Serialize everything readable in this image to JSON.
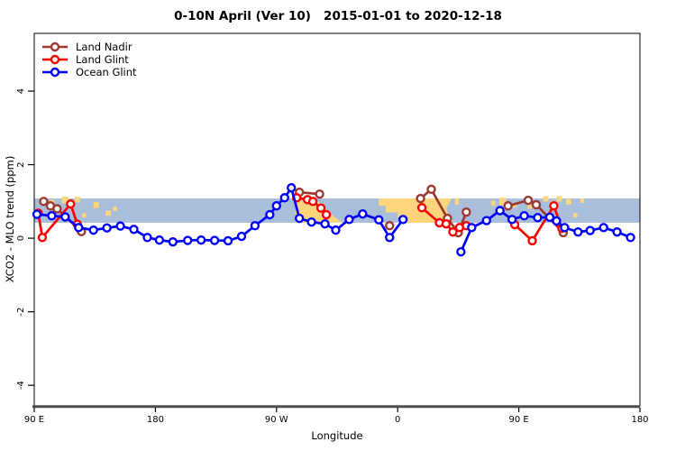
{
  "title": "0-10N April (Ver 10)   2015-01-01 to 2020-12-18",
  "legend": {
    "items": [
      {
        "label": "Land Nadir",
        "color": "#9c3a31"
      },
      {
        "label": "Land Glint",
        "color": "#ff0000"
      },
      {
        "label": "Ocean Glint",
        "color": "#0000ff"
      }
    ]
  },
  "chart_data": {
    "type": "line",
    "title": "0-10N April (Ver 10)   2015-01-01 to 2020-12-18",
    "xlabel": "Longitude",
    "ylabel": "XCO2 - MLO trend (ppm)",
    "xlim": [
      90,
      540
    ],
    "ylim": [
      -4.56,
      5.57
    ],
    "grid": false,
    "legend_position": "top-left",
    "x_ticks": [
      {
        "pos": 90,
        "label": "90 E"
      },
      {
        "pos": 180,
        "label": "180"
      },
      {
        "pos": 270,
        "label": "90 W"
      },
      {
        "pos": 360,
        "label": "0"
      },
      {
        "pos": 450,
        "label": "90 E"
      },
      {
        "pos": 540,
        "label": "180"
      }
    ],
    "y_ticks": [
      {
        "pos": -4,
        "label": "-4"
      },
      {
        "pos": -2,
        "label": "-2"
      },
      {
        "pos": 0,
        "label": "0"
      },
      {
        "pos": 2,
        "label": "2"
      },
      {
        "pos": 4,
        "label": "4"
      }
    ],
    "band": {
      "ymin": 0.42,
      "ymax": 1.08,
      "color": "#a9bedb",
      "description": "0-10N latitude strip map: blue = ocean"
    },
    "land_patches": {
      "color": "#fcd57c",
      "polygons": [
        {
          "name": "south-america",
          "points": [
            [
              284,
              1.02
            ],
            [
              300,
              1.02
            ],
            [
              306,
              0.82
            ],
            [
              313,
              0.58
            ],
            [
              319,
              0.42
            ],
            [
              284,
              0.42
            ]
          ]
        },
        {
          "name": "africa",
          "points": [
            [
              346,
              1.08
            ],
            [
              400,
              1.08
            ],
            [
              396,
              0.8
            ],
            [
              401,
              0.42
            ],
            [
              367,
              0.42
            ],
            [
              367,
              0.55
            ],
            [
              360,
              0.55
            ],
            [
              360,
              0.7
            ],
            [
              351,
              0.7
            ],
            [
              351,
              0.88
            ],
            [
              346,
              0.88
            ]
          ]
        }
      ],
      "specks": [
        [
          103,
          0.96,
          4,
          0.16
        ],
        [
          113,
          1.04,
          5,
          0.18
        ],
        [
          122,
          1.05,
          4,
          0.15
        ],
        [
          127,
          0.62,
          3,
          0.12
        ],
        [
          136,
          0.9,
          4,
          0.16
        ],
        [
          145,
          0.68,
          4,
          0.14
        ],
        [
          150,
          0.8,
          3,
          0.12
        ],
        [
          404,
          1.0,
          3,
          0.18
        ],
        [
          431,
          0.95,
          3,
          0.14
        ],
        [
          438,
          1.0,
          5,
          0.2
        ],
        [
          447,
          0.9,
          3,
          0.12
        ],
        [
          458,
          0.86,
          3,
          0.12
        ],
        [
          470,
          1.07,
          4,
          0.15
        ],
        [
          475,
          0.95,
          3,
          0.12
        ],
        [
          480,
          1.07,
          4,
          0.15
        ],
        [
          487,
          0.99,
          4,
          0.15
        ],
        [
          492,
          0.62,
          3,
          0.12
        ],
        [
          497,
          1.02,
          3,
          0.12
        ]
      ]
    },
    "series": [
      {
        "name": "Land Nadir",
        "color": "#9c3a31",
        "segments": [
          [
            [
              97,
              1.0
            ],
            [
              102,
              0.88
            ],
            [
              107,
              0.8
            ],
            [
              125,
              0.18
            ]
          ],
          [
            [
              287,
              1.25
            ],
            [
              302,
              1.2
            ]
          ],
          [
            [
              354,
              0.34
            ]
          ],
          [
            [
              377,
              1.08
            ],
            [
              385,
              1.33
            ],
            [
              397,
              0.54
            ],
            [
              405,
              0.15
            ],
            [
              411,
              0.71
            ]
          ],
          [
            [
              442,
              0.88
            ],
            [
              457,
              1.03
            ],
            [
              463,
              0.91
            ],
            [
              483,
              0.15
            ]
          ]
        ]
      },
      {
        "name": "Land Glint",
        "color": "#ff0000",
        "segments": [
          [
            [
              93,
              0.68
            ],
            [
              96,
              0.02
            ],
            [
              117,
              0.93
            ],
            [
              122,
              0.38
            ]
          ],
          [
            [
              285,
              1.1
            ],
            [
              293,
              1.05
            ],
            [
              297,
              1.0
            ],
            [
              303,
              0.82
            ],
            [
              307,
              0.64
            ]
          ],
          [
            [
              378,
              0.83
            ],
            [
              391,
              0.42
            ],
            [
              396,
              0.39
            ],
            [
              401,
              0.17
            ],
            [
              406,
              0.29
            ],
            [
              411,
              0.34
            ]
          ],
          [
            [
              447,
              0.37
            ],
            [
              460,
              -0.07
            ],
            [
              476,
              0.88
            ],
            [
              482,
              0.27
            ]
          ]
        ]
      },
      {
        "name": "Ocean Glint",
        "color": "#0000ff",
        "segments": [
          [
            [
              92,
              0.65
            ],
            [
              103,
              0.61
            ],
            [
              113,
              0.58
            ],
            [
              123,
              0.29
            ],
            [
              134,
              0.22
            ],
            [
              144,
              0.28
            ],
            [
              154,
              0.33
            ],
            [
              164,
              0.24
            ],
            [
              174,
              0.02
            ],
            [
              183,
              -0.05
            ],
            [
              193,
              -0.1
            ],
            [
              204,
              -0.06
            ],
            [
              214,
              -0.05
            ],
            [
              224,
              -0.06
            ],
            [
              234,
              -0.07
            ],
            [
              244,
              0.05
            ],
            [
              254,
              0.34
            ],
            [
              265,
              0.64
            ],
            [
              270,
              0.88
            ],
            [
              276,
              1.1
            ],
            [
              281,
              1.37
            ],
            [
              287,
              0.54
            ],
            [
              296,
              0.44
            ],
            [
              306,
              0.39
            ],
            [
              314,
              0.22
            ],
            [
              324,
              0.51
            ],
            [
              334,
              0.66
            ],
            [
              346,
              0.5
            ],
            [
              354,
              0.02
            ],
            [
              364,
              0.51
            ]
          ],
          [
            [
              407,
              -0.37
            ],
            [
              415,
              0.29
            ],
            [
              426,
              0.48
            ],
            [
              436,
              0.75
            ],
            [
              445,
              0.51
            ],
            [
              454,
              0.61
            ],
            [
              464,
              0.56
            ],
            [
              473,
              0.57
            ],
            [
              478,
              0.47
            ],
            [
              484,
              0.29
            ],
            [
              494,
              0.17
            ],
            [
              503,
              0.21
            ],
            [
              513,
              0.29
            ],
            [
              523,
              0.17
            ],
            [
              533,
              0.02
            ]
          ]
        ]
      }
    ]
  }
}
